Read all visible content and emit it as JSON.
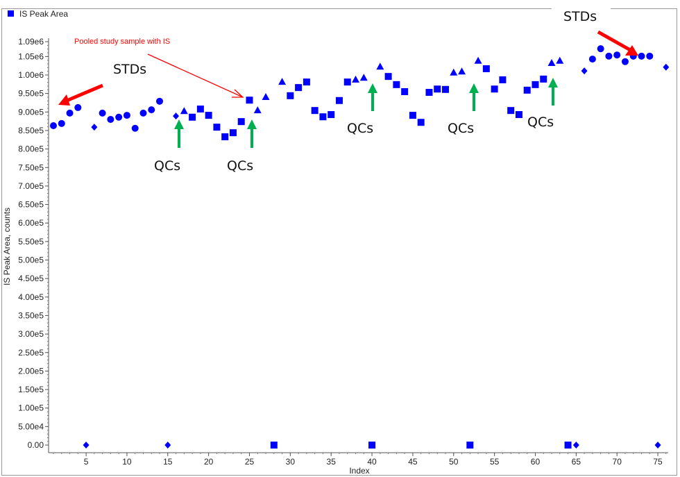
{
  "chart_data": {
    "type": "scatter",
    "legend": {
      "label": "IS Peak Area",
      "placement": "top-left",
      "color": "#0000ff"
    },
    "xlabel": "Index",
    "ylabel": "IS Peak Area, counts",
    "xlim": [
      0.5,
      76.5
    ],
    "ylim": [
      0,
      1100000
    ],
    "grid": false,
    "marker_color": "#0000ff",
    "x_ticks": [
      5,
      10,
      15,
      20,
      25,
      30,
      35,
      40,
      45,
      50,
      55,
      60,
      65,
      70,
      75
    ],
    "x_tick_labels": [
      "5",
      "10",
      "15",
      "20",
      "25",
      "30",
      "35",
      "40",
      "45",
      "50",
      "55",
      "60",
      "65",
      "70",
      "75"
    ],
    "y_ticks": [
      0,
      50000,
      100000,
      150000,
      200000,
      250000,
      300000,
      350000,
      400000,
      450000,
      500000,
      550000,
      600000,
      650000,
      700000,
      750000,
      800000,
      850000,
      900000,
      950000,
      1000000,
      1050000,
      1090000
    ],
    "y_tick_labels": [
      "0.00",
      "5.00e4",
      "1.00e5",
      "1.50e5",
      "2.00e5",
      "2.50e5",
      "3.00e5",
      "3.50e5",
      "4.00e5",
      "4.50e5",
      "5.00e5",
      "5.50e5",
      "6.00e5",
      "6.50e5",
      "7.00e5",
      "7.50e5",
      "8.00e5",
      "8.50e5",
      "9.00e5",
      "9.50e5",
      "1.00e6",
      "1.05e6",
      "1.09e6"
    ],
    "points": [
      {
        "x": 1,
        "y": 863000,
        "marker": "circle"
      },
      {
        "x": 2,
        "y": 869000,
        "marker": "circle"
      },
      {
        "x": 3,
        "y": 897000,
        "marker": "circle"
      },
      {
        "x": 4,
        "y": 912000,
        "marker": "circle"
      },
      {
        "x": 5,
        "y": 0,
        "marker": "diamond"
      },
      {
        "x": 6,
        "y": 859000,
        "marker": "diamond"
      },
      {
        "x": 7,
        "y": 897000,
        "marker": "circle"
      },
      {
        "x": 8,
        "y": 880000,
        "marker": "circle"
      },
      {
        "x": 9,
        "y": 886000,
        "marker": "circle"
      },
      {
        "x": 10,
        "y": 891000,
        "marker": "circle"
      },
      {
        "x": 11,
        "y": 856000,
        "marker": "circle"
      },
      {
        "x": 12,
        "y": 897000,
        "marker": "circle"
      },
      {
        "x": 13,
        "y": 906000,
        "marker": "circle"
      },
      {
        "x": 14,
        "y": 929000,
        "marker": "circle"
      },
      {
        "x": 15,
        "y": 0,
        "marker": "diamond"
      },
      {
        "x": 16,
        "y": 889000,
        "marker": "diamond"
      },
      {
        "x": 17,
        "y": 902000,
        "marker": "triangle"
      },
      {
        "x": 18,
        "y": 886000,
        "marker": "square"
      },
      {
        "x": 19,
        "y": 908000,
        "marker": "square"
      },
      {
        "x": 20,
        "y": 891000,
        "marker": "square"
      },
      {
        "x": 21,
        "y": 859000,
        "marker": "square"
      },
      {
        "x": 22,
        "y": 833000,
        "marker": "square"
      },
      {
        "x": 23,
        "y": 844000,
        "marker": "square"
      },
      {
        "x": 24,
        "y": 874000,
        "marker": "square"
      },
      {
        "x": 25,
        "y": 932000,
        "marker": "square"
      },
      {
        "x": 26,
        "y": 904000,
        "marker": "triangle"
      },
      {
        "x": 27,
        "y": 940000,
        "marker": "triangle"
      },
      {
        "x": 28,
        "y": 0,
        "marker": "square"
      },
      {
        "x": 29,
        "y": 981000,
        "marker": "triangle"
      },
      {
        "x": 30,
        "y": 944000,
        "marker": "square"
      },
      {
        "x": 31,
        "y": 966000,
        "marker": "square"
      },
      {
        "x": 32,
        "y": 981000,
        "marker": "square"
      },
      {
        "x": 33,
        "y": 904000,
        "marker": "square"
      },
      {
        "x": 34,
        "y": 887000,
        "marker": "square"
      },
      {
        "x": 35,
        "y": 893000,
        "marker": "square"
      },
      {
        "x": 36,
        "y": 931000,
        "marker": "square"
      },
      {
        "x": 37,
        "y": 981000,
        "marker": "square"
      },
      {
        "x": 38,
        "y": 987000,
        "marker": "triangle"
      },
      {
        "x": 39,
        "y": 992000,
        "marker": "triangle"
      },
      {
        "x": 40,
        "y": 0,
        "marker": "square"
      },
      {
        "x": 41,
        "y": 1022000,
        "marker": "triangle"
      },
      {
        "x": 42,
        "y": 996000,
        "marker": "square"
      },
      {
        "x": 43,
        "y": 974000,
        "marker": "square"
      },
      {
        "x": 44,
        "y": 955000,
        "marker": "square"
      },
      {
        "x": 45,
        "y": 891000,
        "marker": "square"
      },
      {
        "x": 46,
        "y": 872000,
        "marker": "square"
      },
      {
        "x": 47,
        "y": 953000,
        "marker": "square"
      },
      {
        "x": 48,
        "y": 962000,
        "marker": "square"
      },
      {
        "x": 49,
        "y": 961000,
        "marker": "square"
      },
      {
        "x": 50,
        "y": 1006000,
        "marker": "triangle"
      },
      {
        "x": 51,
        "y": 1009000,
        "marker": "triangle"
      },
      {
        "x": 52,
        "y": 0,
        "marker": "square"
      },
      {
        "x": 53,
        "y": 1038000,
        "marker": "triangle"
      },
      {
        "x": 54,
        "y": 1017000,
        "marker": "square"
      },
      {
        "x": 55,
        "y": 962000,
        "marker": "square"
      },
      {
        "x": 56,
        "y": 987000,
        "marker": "square"
      },
      {
        "x": 57,
        "y": 904000,
        "marker": "square"
      },
      {
        "x": 58,
        "y": 893000,
        "marker": "square"
      },
      {
        "x": 59,
        "y": 959000,
        "marker": "square"
      },
      {
        "x": 60,
        "y": 974000,
        "marker": "square"
      },
      {
        "x": 61,
        "y": 989000,
        "marker": "square"
      },
      {
        "x": 62,
        "y": 1032000,
        "marker": "triangle"
      },
      {
        "x": 63,
        "y": 1038000,
        "marker": "triangle"
      },
      {
        "x": 64,
        "y": 0,
        "marker": "square"
      },
      {
        "x": 65,
        "y": 0,
        "marker": "diamond"
      },
      {
        "x": 66,
        "y": 1011000,
        "marker": "diamond"
      },
      {
        "x": 67,
        "y": 1043000,
        "marker": "circle"
      },
      {
        "x": 68,
        "y": 1071000,
        "marker": "circle"
      },
      {
        "x": 69,
        "y": 1051000,
        "marker": "circle"
      },
      {
        "x": 70,
        "y": 1054000,
        "marker": "circle"
      },
      {
        "x": 71,
        "y": 1036000,
        "marker": "circle"
      },
      {
        "x": 72,
        "y": 1051000,
        "marker": "circle"
      },
      {
        "x": 73,
        "y": 1051000,
        "marker": "circle"
      },
      {
        "x": 74,
        "y": 1051000,
        "marker": "circle"
      },
      {
        "x": 75,
        "y": 0,
        "marker": "diamond"
      },
      {
        "x": 76,
        "y": 1021000,
        "marker": "diamond"
      }
    ],
    "annotations": {
      "stds_left": "STDs",
      "stds_right": "STDs",
      "pooled": "Pooled study sample with IS",
      "qcs": [
        "QCs",
        "QCs",
        "QCs",
        "QCs",
        "QCs"
      ],
      "arrow_red": "#ff0000",
      "arrow_green": "#00b050"
    }
  }
}
